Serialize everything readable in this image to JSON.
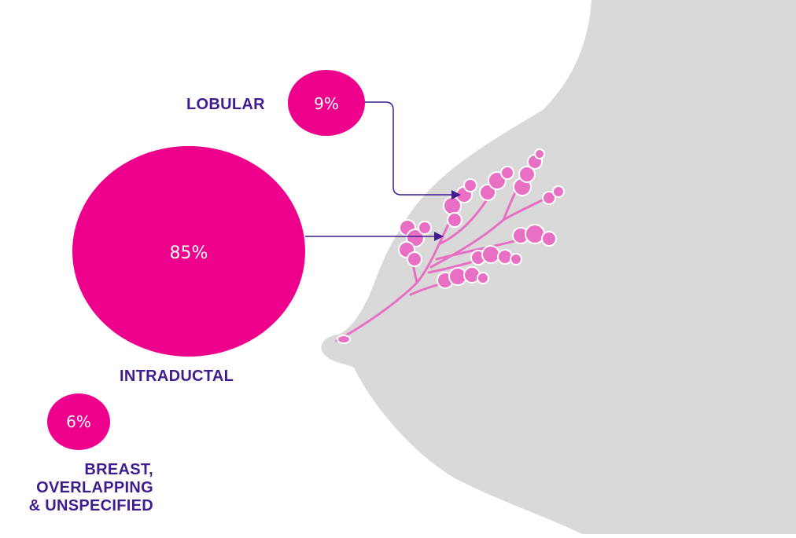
{
  "colors": {
    "bubble": "#ec008c",
    "label_text": "#3f1d8f",
    "percent_text": "#ffffff",
    "connector": "#3f1d8f",
    "silhouette": "#d9d9d9",
    "lobule_fill": "#e86fc3",
    "lobule_outline": "#ffffff"
  },
  "categories": [
    {
      "label": "LOBULAR",
      "percent": "9%",
      "value": 9
    },
    {
      "label": "INTRADUCTAL",
      "percent": "85%",
      "value": 85
    },
    {
      "label_lines": [
        "BREAST,",
        "OVERLAPPING",
        "& UNSPECIFIED"
      ],
      "percent": "6%",
      "value": 6
    }
  ]
}
